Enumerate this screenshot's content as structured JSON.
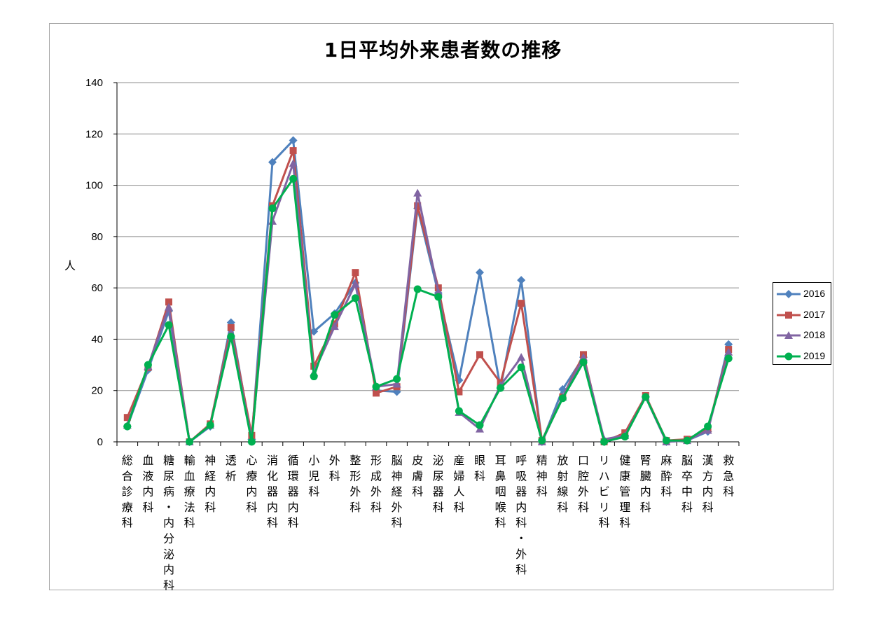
{
  "chart_data": {
    "type": "line",
    "title": "1日平均外来患者数の推移",
    "ylabel": "人",
    "xlabel": "",
    "ylim": [
      0,
      140
    ],
    "yticks": [
      0,
      20,
      40,
      60,
      80,
      100,
      120,
      140
    ],
    "grid": true,
    "legend_position": "right",
    "categories": [
      "総合診療科",
      "血液内科",
      "糖尿病・内分泌内科",
      "輸血療法科",
      "神経内科",
      "透析",
      "心療内科",
      "消化器内科",
      "循環器内科",
      "小児科",
      "外科",
      "整形外科",
      "形成外科",
      "脳神経外科",
      "皮膚科",
      "泌尿器科",
      "産婦人科",
      "眼科",
      "耳鼻咽喉科",
      "呼吸器内科・外科",
      "精神科",
      "放射線科",
      "口腔外科",
      "リハビリ科",
      "健康管理科",
      "腎臓内科",
      "麻酔科",
      "脳卒中科",
      "漢方内科",
      "救急科"
    ],
    "series": [
      {
        "name": "2016",
        "color": "#4f81bd",
        "marker": "diamond",
        "values": [
          6,
          28,
          51,
          0,
          6,
          46.5,
          1,
          109,
          117.5,
          43,
          50,
          62,
          20,
          19.5,
          91,
          58,
          24,
          66,
          21,
          63,
          0,
          20.5,
          33,
          0,
          2.5,
          17.5,
          0,
          0.5,
          4,
          38
        ]
      },
      {
        "name": "2017",
        "color": "#c0504d",
        "marker": "square",
        "values": [
          9.5,
          29,
          54.5,
          0,
          7,
          44.5,
          2.5,
          92,
          113.5,
          29.5,
          46,
          66,
          19,
          21.5,
          92,
          60,
          19.5,
          34,
          23,
          54,
          0.5,
          17.5,
          34,
          0,
          3.5,
          18,
          0.5,
          1,
          5,
          36
        ]
      },
      {
        "name": "2018",
        "color": "#8064a2",
        "marker": "triangle",
        "values": [
          6.5,
          29.5,
          52.5,
          0,
          6.5,
          42.5,
          1,
          86,
          108.5,
          27,
          45,
          61.5,
          21.5,
          22.5,
          97,
          58.5,
          11.5,
          5,
          22,
          33,
          0,
          17.5,
          33,
          1,
          2.5,
          17.5,
          0,
          0.5,
          4.5,
          35
        ]
      },
      {
        "name": "2019",
        "color": "#00b050",
        "marker": "circle",
        "values": [
          6,
          30,
          45.5,
          0,
          6.5,
          41,
          0,
          91,
          102.5,
          25.5,
          49.5,
          56,
          21.5,
          24.5,
          59.5,
          56.5,
          12,
          6.5,
          21,
          29,
          0.5,
          17,
          31,
          0,
          2,
          17.5,
          0.5,
          0.5,
          6,
          32.5
        ]
      }
    ]
  }
}
